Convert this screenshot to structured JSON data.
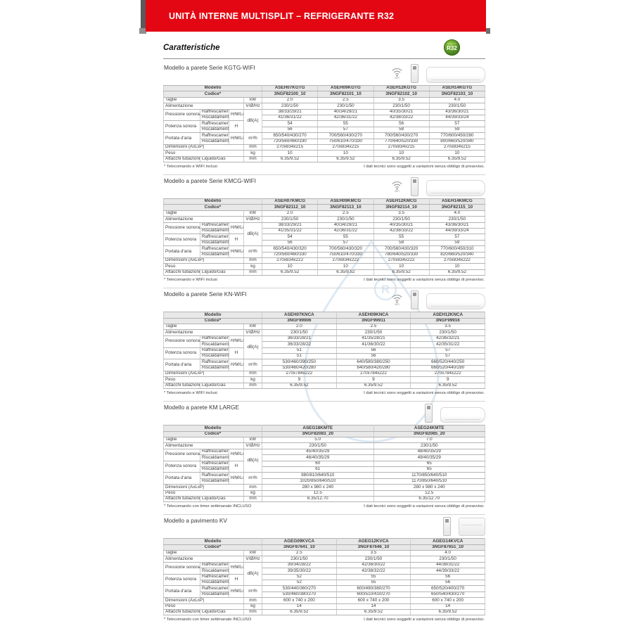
{
  "banner": {
    "title": "UNITÀ INTERNE MULTISPLIT – REFRIGERANTE R32"
  },
  "badge": {
    "label": "R32",
    "subtitle": "Refrigerant"
  },
  "page_title": "Caratteristiche",
  "tech_note": "I dati tecnici sono soggetti a variazioni senza obbligo di preavviso.",
  "colors": {
    "accent_red": "#e30613",
    "badge_green": "#4f8f1e",
    "watermark_blue": "#b5d0e8"
  },
  "labels": {
    "modello": "Modello",
    "codice": "Codice*",
    "taglie": "Taglie",
    "alimentazione": "Alimentazione",
    "pressione": "Pressione sonora",
    "potenza": "Potenza sonora",
    "portata": "Portata d'aria",
    "dimensioni": "Dimensioni (AxLxP)",
    "peso": "Peso",
    "attacchi": "Attacchi tubazioni",
    "raffrescamento": "Raffrescamento",
    "riscaldamento": "Riscaldamento",
    "hmlq": "H/M/L/Q",
    "h": "H",
    "liquido_gas": "Liquido/Gas",
    "units": {
      "kw": "kW",
      "vhz": "V/Ø/Hz",
      "db": "dB(A)",
      "m3h": "m³/h",
      "mm": "mm",
      "kg": "kg"
    }
  },
  "sections": [
    {
      "heading": "Modello a parete Serie KGTG-WIFI",
      "icons": [
        "wifi-icon",
        "remote-icon",
        "wall-unit-image"
      ],
      "footnote": "* Telecomando e WIFI inclusi",
      "models": [
        "ASEH07KGTG",
        "ASEH09KGTG",
        "ASEH12KGTG",
        "ASEH14KGTG"
      ],
      "codes": [
        "3NGF82100_10",
        "3NGF82101_10",
        "3NGF82102_10",
        "3NGF82103_10"
      ],
      "rows": {
        "taglie": [
          "2.0",
          "2.5",
          "3.5",
          "4.0"
        ],
        "alimentazione": [
          "230/1/50",
          "230/1/50",
          "230/1/50",
          "230/1/50"
        ],
        "pressione_raffrescamento": [
          "38/33/29/21",
          "40/34/29/21",
          "40/35/30/21",
          "43/36/30/21"
        ],
        "pressione_riscaldamento": [
          "41/36/31/22",
          "42/36/31/22",
          "42/38/33/22",
          "44/39/33/24"
        ],
        "potenza_raffrescamento": [
          "54",
          "55",
          "56",
          "57"
        ],
        "potenza_riscaldamento": [
          "56",
          "57",
          "58",
          "59"
        ],
        "portata_raffrescamento": [
          "650/540/430/270",
          "700/560/430/270",
          "700/560/430/270",
          "770/600/450/280"
        ],
        "portata_riscaldamento": [
          "720/560/460/330",
          "750/610/470/330",
          "770/640/520/330",
          "800/660/520/340"
        ],
        "dimensioni": [
          "270x834x215",
          "270x834x215",
          "270x834x215",
          "270x834x215"
        ],
        "peso": [
          "10",
          "10",
          "10",
          "10"
        ],
        "attacchi": [
          "6.35/9.52",
          "6.35/9.52",
          "6.35/9.52",
          "6.35/9.52"
        ]
      }
    },
    {
      "heading": "Modello a parete Serie KMCG-WIFI",
      "icons": [
        "wifi-icon",
        "remote-icon",
        "wall-unit-image"
      ],
      "footnote": "* Telecomando e WIFI inclusi",
      "models": [
        "ASEH07KMCG",
        "ASEH09KMCG",
        "ASEH12KMCG",
        "ASEH14KMCG"
      ],
      "codes": [
        "3NGF82112_10",
        "3NGF82113_10",
        "3NGF82114_10",
        "3NGF82115_10"
      ],
      "rows": {
        "taglie": [
          "2.0",
          "2.5",
          "3.5",
          "4.0"
        ],
        "alimentazione": [
          "230/1/50",
          "230/1/50",
          "230/1/50",
          "230/1/50"
        ],
        "pressione_raffrescamento": [
          "38/33/29/21",
          "40/34/29/21",
          "40/35/30/21",
          "43/36/30/21"
        ],
        "pressione_riscaldamento": [
          "41/35/31/22",
          "42/36/31/22",
          "42/38/33/22",
          "44/39/33/24"
        ],
        "potenza_raffrescamento": [
          "54",
          "55",
          "55",
          "57"
        ],
        "potenza_riscaldamento": [
          "56",
          "57",
          "58",
          "59"
        ],
        "portata_raffrescamento": [
          "650/540/430/320",
          "700/560/430/320",
          "700/560/430/320",
          "770/600/450/310"
        ],
        "portata_riscaldamento": [
          "720/560/460/330",
          "750/610/470/330",
          "780/640/520/330",
          "820/660/520/340"
        ],
        "dimensioni": [
          "270x834x222",
          "270x834x222",
          "270x834x222",
          "270x834x222"
        ],
        "peso": [
          "10",
          "10",
          "10",
          "10"
        ],
        "attacchi": [
          "6.35/9.52",
          "6.35/9.52",
          "6.35/9.52",
          "6.35/9.52"
        ]
      }
    },
    {
      "heading": "Modello a parete Serie KN-WIFI",
      "icons": [
        "wifi-icon",
        "remote-icon",
        "wall-unit-image"
      ],
      "footnote": "* Telecomando e WIFI inclusi",
      "models": [
        "ASEH07KNCA",
        "ASEH09KNCA",
        "ASEH12KNCA"
      ],
      "codes": [
        "3NGF99906",
        "3NGF99911",
        "3NGF99916"
      ],
      "rows": {
        "taglie": [
          "2.0",
          "2.5",
          "3.5"
        ],
        "alimentazione": [
          "230/1/50",
          "230/1/50",
          "230/1/50"
        ],
        "pressione_raffrescamento": [
          "36/33/28/21",
          "41/35/28/21",
          "42/36/32/21"
        ],
        "pressione_riscaldamento": [
          "36/33/28/22",
          "41/36/30/22",
          "42/35/31/22"
        ],
        "potenza_raffrescamento": [
          "51",
          "56",
          "57"
        ],
        "potenza_riscaldamento": [
          "51",
          "56",
          "57"
        ],
        "portata_raffrescamento": [
          "530/460/390/250",
          "640/580/380/250",
          "660/520/440/250"
        ],
        "portata_riscaldamento": [
          "530/460/420/280",
          "640/580/420/280",
          "660/520/440/280"
        ],
        "dimensioni": [
          "270x784x222",
          "270x784x222",
          "270x784x222"
        ],
        "peso": [
          "9",
          "9",
          "9"
        ],
        "attacchi": [
          "6.35/9.52",
          "6.35/9.52",
          "6.35/9.52"
        ]
      }
    },
    {
      "heading": "Modello a parete KM LARGE",
      "icons": [
        "remote-icon",
        "wall-unit-large-image"
      ],
      "footnote": "* Telecomando con timer settimanale INCLUSO",
      "models": [
        "ASEG18KMTE",
        "ASEG24KMTE"
      ],
      "codes": [
        "3NGF82083_20",
        "3NGF82085_20"
      ],
      "rows": {
        "taglie": [
          "5.0",
          "7.0"
        ],
        "alimentazione": [
          "230/1/50",
          "230/1/50"
        ],
        "pressione_raffrescamento": [
          "45/40/35/29",
          "48/40/35/29"
        ],
        "pressione_riscaldamento": [
          "46/40/35/29",
          "49/40/35/29"
        ],
        "potenza_raffrescamento": [
          "60",
          "65"
        ],
        "potenza_riscaldamento": [
          "61",
          "65"
        ],
        "portata_raffrescamento": [
          "980/810/640/510",
          "1170/850/640/510"
        ],
        "portata_riscaldamento": [
          "1020/850/640/510",
          "1170/850/640/510"
        ],
        "dimensioni": [
          "280 x 980 x 240",
          "280 x 980 x 240"
        ],
        "peso": [
          "12.5",
          "12.5"
        ],
        "attacchi": [
          "6.35/12.70",
          "6.35/12.70"
        ]
      }
    },
    {
      "heading": "Modello a pavimento KV",
      "icons": [
        "remote-icon",
        "floor-unit-image"
      ],
      "footnote": "* Telecomando con timer settimanale INCLUSO",
      "models": [
        "AGEG09KVCA",
        "AGEG12KVCA",
        "AGEG14KVCA"
      ],
      "codes": [
        "3NGF87641_10",
        "3NGF87646_10",
        "3NGF87651_10"
      ],
      "rows": {
        "taglie": [
          "2.5",
          "3.5",
          "4.0"
        ],
        "alimentazione": [
          "230/1/50",
          "230/1/50",
          "230/1/50"
        ],
        "pressione_raffrescamento": [
          "39/34/28/22",
          "42/36/30/22",
          "44/38/31/22"
        ],
        "pressione_riscaldamento": [
          "39/35/30/22",
          "42/38/32/22",
          "44/39/33/22"
        ],
        "potenza_raffrescamento": [
          "52",
          "55",
          "56"
        ],
        "potenza_riscaldamento": [
          "52",
          "55",
          "56"
        ],
        "portata_raffrescamento": [
          "530/440/360/270",
          "600/490/380/270",
          "650/520/400/270"
        ],
        "portata_riscaldamento": [
          "530/460/380/270",
          "600/510/410/270",
          "650/540/430/270"
        ],
        "dimensioni": [
          "600 x 740 x 200",
          "600 x 740 x 200",
          "600 x 740 x 200"
        ],
        "peso": [
          "14",
          "14",
          "14"
        ],
        "attacchi": [
          "6.35/9.52",
          "6.35/9.52",
          "6.35/9.52"
        ]
      }
    }
  ]
}
